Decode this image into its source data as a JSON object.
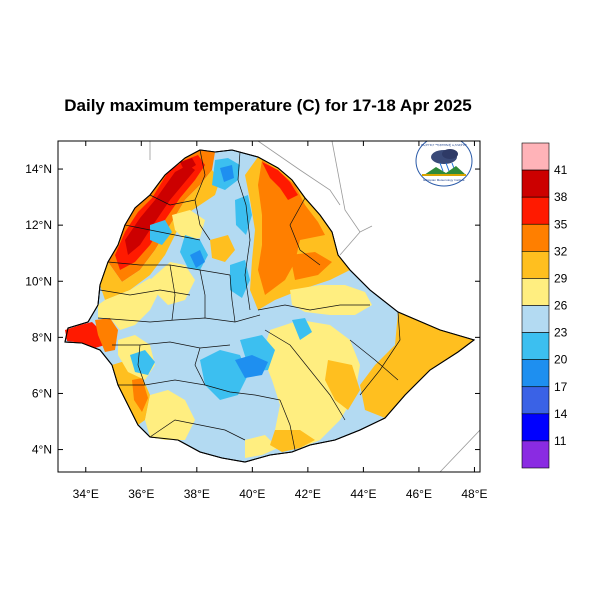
{
  "title": "Daily maximum temperature (C) for 17-18 Apr 2025",
  "axes": {
    "lat_ticks": [
      "14°N",
      "12°N",
      "10°N",
      "8°N",
      "6°N",
      "4°N"
    ],
    "lon_ticks": [
      "34°E",
      "36°E",
      "38°E",
      "40°E",
      "42°E",
      "44°E",
      "46°E",
      "48°E"
    ],
    "lat_values": [
      14,
      12,
      10,
      8,
      6,
      4
    ],
    "lon_values": [
      34,
      36,
      38,
      40,
      42,
      44,
      46,
      48
    ],
    "lat_range": [
      3.2,
      15.0
    ],
    "lon_range": [
      33.0,
      48.2
    ]
  },
  "colorbar": {
    "labels": [
      "41",
      "38",
      "35",
      "32",
      "29",
      "26",
      "23",
      "20",
      "17",
      "14",
      "11"
    ],
    "colors": [
      "#ffb3b8",
      "#cc0000",
      "#ff1a00",
      "#ff7f00",
      "#ffbf1f",
      "#ffee80",
      "#b3daf2",
      "#3cbff0",
      "#1e8ff0",
      "#3a62e6",
      "#0000ff",
      "#8a2be2"
    ]
  },
  "logo": {
    "text_top": "የኢትዮጵያ ሚቲዎሮሎጂ ኢንስቲትዩት",
    "text_bottom": "Ethiopian Meteorology Institute"
  }
}
